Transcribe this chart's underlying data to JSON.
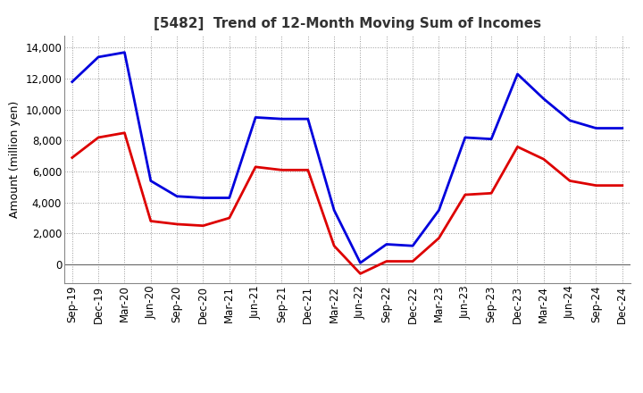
{
  "title": "[5482]  Trend of 12-Month Moving Sum of Incomes",
  "ylabel": "Amount (million yen)",
  "ylim": [
    -1200,
    14800
  ],
  "yticks": [
    0,
    2000,
    4000,
    6000,
    8000,
    10000,
    12000,
    14000
  ],
  "x_labels": [
    "Sep-19",
    "Dec-19",
    "Mar-20",
    "Jun-20",
    "Sep-20",
    "Dec-20",
    "Mar-21",
    "Jun-21",
    "Sep-21",
    "Dec-21",
    "Mar-22",
    "Jun-22",
    "Sep-22",
    "Dec-22",
    "Mar-23",
    "Jun-23",
    "Sep-23",
    "Dec-23",
    "Mar-24",
    "Jun-24",
    "Sep-24",
    "Dec-24"
  ],
  "ordinary_income": [
    11800,
    13400,
    13700,
    5400,
    4400,
    4300,
    4300,
    9500,
    9400,
    9400,
    3500,
    100,
    1300,
    1200,
    3500,
    8200,
    8100,
    12300,
    10700,
    9300,
    8800,
    8800
  ],
  "net_income": [
    6900,
    8200,
    8500,
    2800,
    2600,
    2500,
    3000,
    6300,
    6100,
    6100,
    1200,
    -600,
    200,
    200,
    1700,
    4500,
    4600,
    7600,
    6800,
    5400,
    5100,
    5100
  ],
  "ordinary_color": "#0000dd",
  "net_color": "#dd0000",
  "line_width": 2.0,
  "background_color": "#ffffff",
  "grid_color": "#999999",
  "title_fontsize": 11,
  "label_fontsize": 9,
  "tick_fontsize": 8.5
}
